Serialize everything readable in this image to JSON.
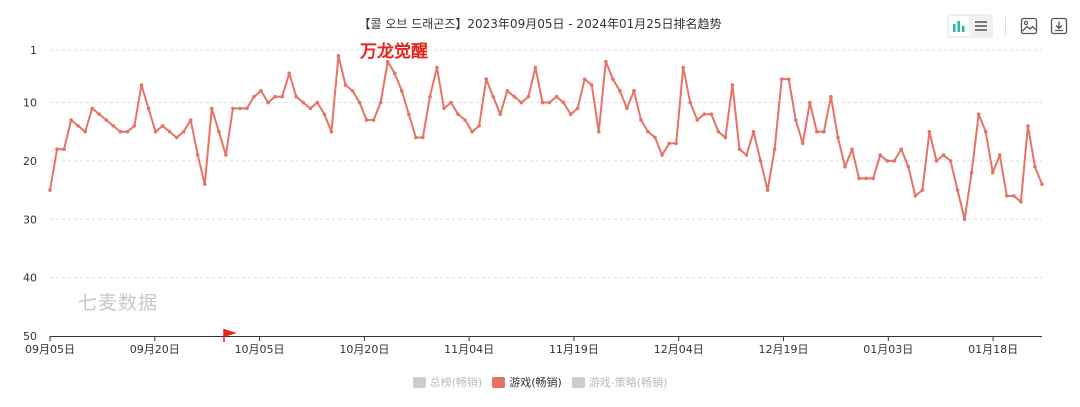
{
  "title": "【콜 오브 드래곤즈】2023年09月05日 - 2024年01月25日排名趋势",
  "event_label": "万龙觉醒",
  "watermark": "七麦数据",
  "colors": {
    "series": "#e67366",
    "marker": "#e8231c",
    "grid": "#e0e0e0",
    "axis": "#333333"
  },
  "toolbar": {
    "icons": [
      "bar-chart-icon",
      "list-icon",
      "image-icon",
      "download-icon"
    ]
  },
  "legend": [
    {
      "label": "总榜(畅销)",
      "active": false
    },
    {
      "label": "游戏(畅销)",
      "active": true
    },
    {
      "label": "游戏-策略(畅销)",
      "active": false
    }
  ],
  "chart_data": {
    "type": "line",
    "title": "【콜 오브 드래곤즈】2023年09月05日 - 2024年01月25日排名趋势",
    "x_start": "2023-09-05",
    "x_end": "2024-01-25",
    "y_inverted": true,
    "ylim": [
      1,
      50
    ],
    "yticks": [
      1,
      10,
      20,
      30,
      40,
      50
    ],
    "xticks": [
      "09月05日",
      "09月20日",
      "10月05日",
      "10月20日",
      "11月04日",
      "11月19日",
      "12月04日",
      "12月19日",
      "01月03日",
      "01月18日"
    ],
    "grid": true,
    "legend_position": "bottom",
    "event_markers": [
      {
        "date": "10月01日",
        "type": "flag"
      }
    ],
    "annotations": [
      {
        "text": "万龙觉醒",
        "near": "10月20日"
      }
    ],
    "series": [
      {
        "name": "游戏(畅销)",
        "values": [
          25,
          18,
          18,
          13,
          14,
          15,
          11,
          12,
          13,
          14,
          15,
          15,
          14,
          7,
          11,
          15,
          14,
          15,
          16,
          15,
          13,
          19,
          24,
          11,
          15,
          19,
          11,
          11,
          11,
          9,
          8,
          10,
          9,
          9,
          5,
          9,
          10,
          11,
          10,
          12,
          15,
          2,
          7,
          8,
          10,
          13,
          13,
          10,
          3,
          5,
          8,
          12,
          16,
          16,
          9,
          4,
          11,
          10,
          12,
          13,
          15,
          14,
          6,
          9,
          12,
          8,
          9,
          10,
          9,
          4,
          10,
          10,
          9,
          10,
          12,
          11,
          6,
          7,
          15,
          3,
          6,
          8,
          11,
          8,
          13,
          15,
          16,
          19,
          17,
          17,
          4,
          10,
          13,
          12,
          12,
          15,
          16,
          7,
          18,
          19,
          15,
          20,
          25,
          18,
          6,
          6,
          13,
          17,
          10,
          15,
          15,
          9,
          16,
          21,
          18,
          23,
          23,
          23,
          19,
          20,
          20,
          18,
          21,
          26,
          25,
          15,
          20,
          19,
          20,
          25,
          30,
          22,
          12,
          15,
          22,
          19,
          26,
          26,
          27,
          14,
          21,
          24
        ]
      }
    ]
  }
}
